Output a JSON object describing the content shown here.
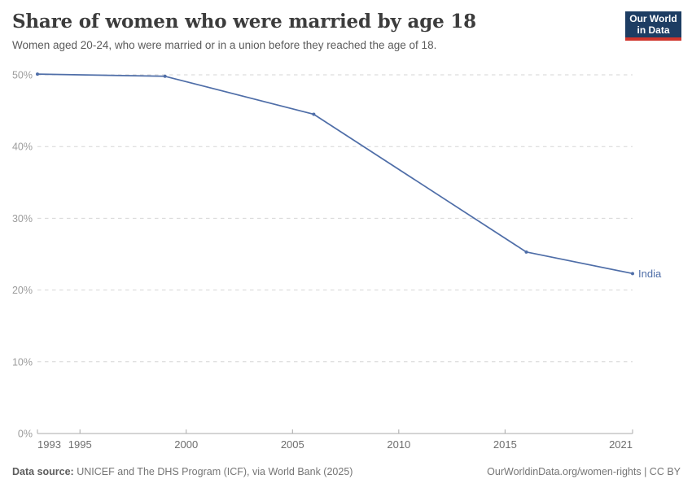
{
  "header": {
    "title": "Share of women who were married by age 18",
    "subtitle": "Women aged 20-24, who were married or in a union before they reached the age of 18."
  },
  "logo": {
    "line1": "Our World",
    "line2": "in Data",
    "bg_color": "#1d3d63",
    "accent_color": "#cf342b"
  },
  "chart_data": {
    "type": "line",
    "title": "Share of women who were married by age 18",
    "xlabel": "",
    "ylabel": "",
    "xlim": [
      1993,
      2021
    ],
    "ylim": [
      0,
      50
    ],
    "grid": "dashed-horizontal",
    "legend_position": "end-of-line-label",
    "x_ticks": [
      {
        "year": 1993,
        "label": "1993",
        "anchor": "start"
      },
      {
        "year": 1995,
        "label": "1995",
        "anchor": "middle"
      },
      {
        "year": 2000,
        "label": "2000",
        "anchor": "middle"
      },
      {
        "year": 2005,
        "label": "2005",
        "anchor": "middle"
      },
      {
        "year": 2010,
        "label": "2010",
        "anchor": "middle"
      },
      {
        "year": 2015,
        "label": "2015",
        "anchor": "middle"
      },
      {
        "year": 2021,
        "label": "2021",
        "anchor": "end"
      }
    ],
    "y_ticks": [
      {
        "value": 0,
        "label": "0%"
      },
      {
        "value": 10,
        "label": "10%"
      },
      {
        "value": 20,
        "label": "20%"
      },
      {
        "value": 30,
        "label": "30%"
      },
      {
        "value": 40,
        "label": "40%"
      },
      {
        "value": 50,
        "label": "50%"
      }
    ],
    "series": [
      {
        "name": "India",
        "end_label": "India",
        "color": "#4F6EA8",
        "points": [
          {
            "year": 1993,
            "value": 50.1
          },
          {
            "year": 1999,
            "value": 49.8
          },
          {
            "year": 2006,
            "value": 44.5
          },
          {
            "year": 2016,
            "value": 25.3
          },
          {
            "year": 2021,
            "value": 22.3
          }
        ]
      }
    ]
  },
  "footer": {
    "source_label": "Data source:",
    "source_text": " UNICEF and The DHS Program (ICF), via World Bank (2025)",
    "link_text": "OurWorldinData.org/women-rights | CC BY"
  }
}
